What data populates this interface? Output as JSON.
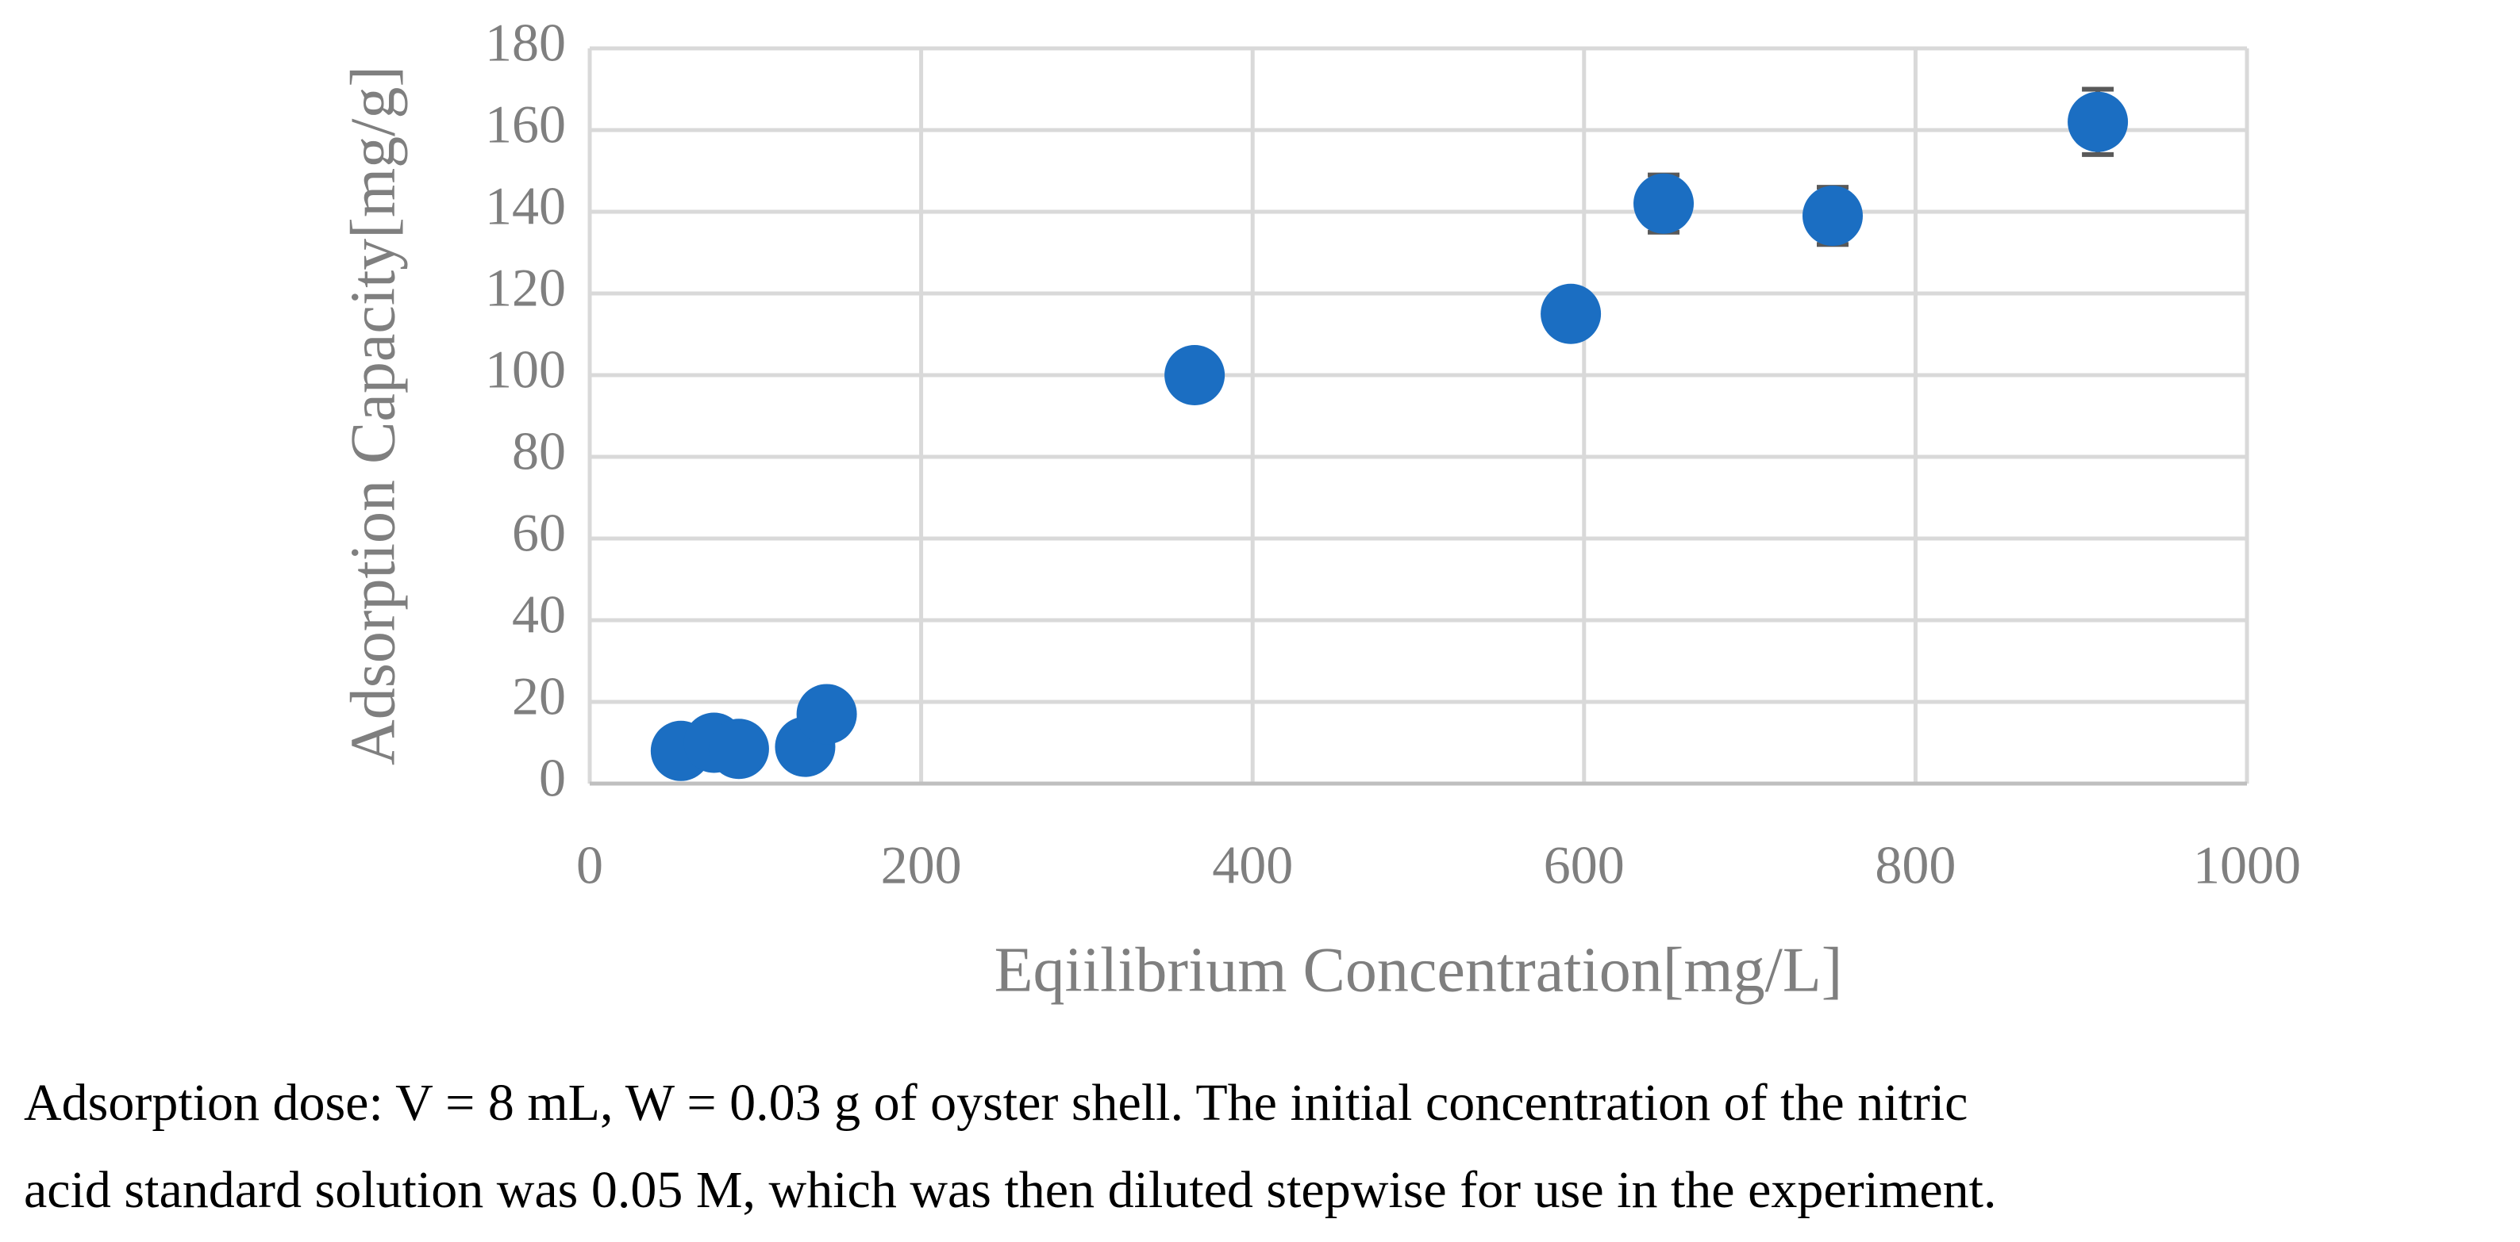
{
  "chart_data": {
    "type": "scatter",
    "x_label": "Eqiilibrium Concentration[mg/L]",
    "y_label": "Adsorption Capacity[mg/g]",
    "series": [
      {
        "color": "#1b6ec2",
        "x": [
          55,
          75,
          90,
          130,
          143,
          365,
          592,
          648,
          750,
          910
        ],
        "values": [
          8,
          10,
          8.5,
          9,
          17,
          100,
          115,
          142,
          139,
          162
        ],
        "errors": [
          1,
          1,
          1,
          1,
          1,
          1,
          1,
          7,
          7,
          8
        ]
      }
    ],
    "xlim": [
      0,
      1000
    ],
    "xticks": [
      0,
      200,
      400,
      600,
      800,
      1000
    ],
    "ylim": [
      0,
      180
    ],
    "yticks": [
      0,
      20,
      40,
      60,
      80,
      100,
      120,
      140,
      160,
      180
    ],
    "grid": true
  },
  "caption": [
    "Adsorption dose: V = 8 mL, W = 0.03 g of oyster shell. The initial concentration of the nitric",
    "acid standard solution was 0.05 M, which was then diluted stepwise for use in the experiment."
  ]
}
